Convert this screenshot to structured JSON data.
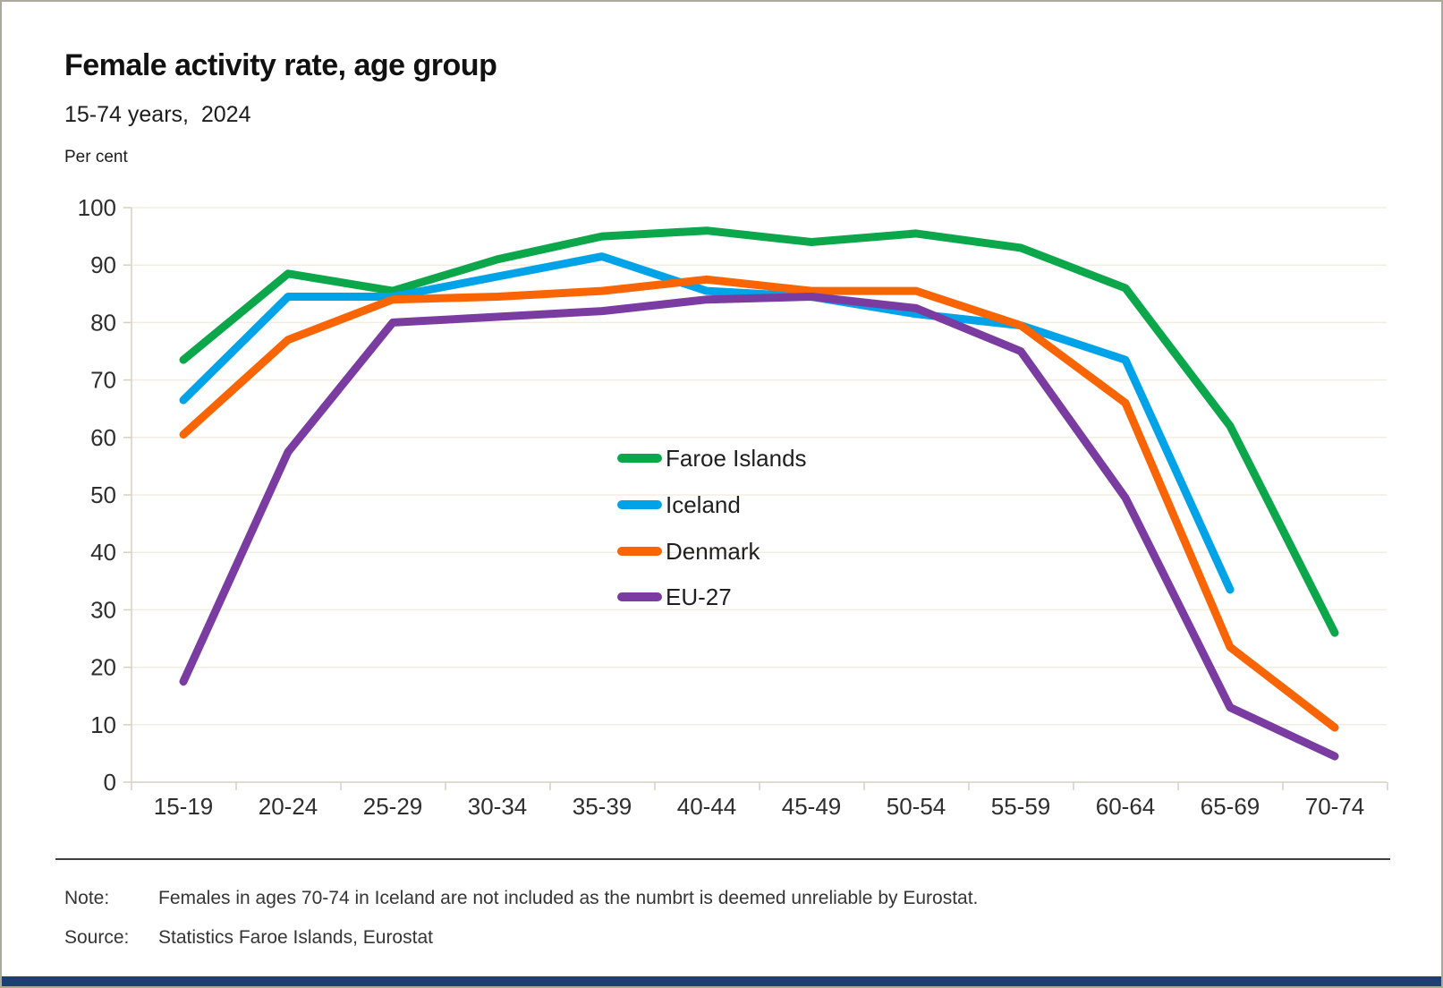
{
  "header": {
    "title": "Female activity rate, age group",
    "subtitle": "15-74 years,  2024",
    "unit_label": "Per cent"
  },
  "chart_data": {
    "type": "line",
    "title": "Female activity rate, age group",
    "subtitle": "15-74 years, 2024",
    "ylabel": "Per cent",
    "xlabel": "",
    "ylim": [
      0,
      100
    ],
    "y_tick_step": 10,
    "y_ticks": [
      0,
      10,
      20,
      30,
      40,
      50,
      60,
      70,
      80,
      90,
      100
    ],
    "grid": true,
    "legend_position": "inside-center",
    "categories": [
      "15-19",
      "20-24",
      "25-29",
      "30-34",
      "35-39",
      "40-44",
      "45-49",
      "50-54",
      "55-59",
      "60-64",
      "65-69",
      "70-74"
    ],
    "series": [
      {
        "name": "Faroe Islands",
        "color": "#0CA64B",
        "values": [
          73.5,
          88.5,
          85.5,
          91,
          95,
          96,
          94,
          95.5,
          93,
          86,
          62,
          26
        ]
      },
      {
        "name": "Iceland",
        "color": "#00A3E8",
        "values": [
          66.5,
          84.5,
          84.5,
          88,
          91.5,
          85.5,
          84.5,
          81.5,
          79.5,
          73.5,
          33.5,
          null
        ]
      },
      {
        "name": "Denmark",
        "color": "#F96505",
        "values": [
          60.5,
          77,
          84,
          84.5,
          85.5,
          87.5,
          85.5,
          85.5,
          79.5,
          66,
          23.5,
          9.5
        ]
      },
      {
        "name": "EU-27",
        "color": "#7A3CA0",
        "values": [
          17.5,
          57.5,
          80,
          81,
          82,
          84,
          84.5,
          82.5,
          75,
          49.5,
          13,
          4.5
        ]
      }
    ]
  },
  "footer": {
    "note_label": "Note:",
    "note_text": "Females in ages 70-74 in Iceland are not included as the numbrt is deemed unreliable by Eurostat.",
    "source_label": "Source:",
    "source_text": "Statistics Faroe Islands, Eurostat"
  },
  "colors": {
    "gridline": "#F1EDE2",
    "axis": "#D5D1C3",
    "tick_text": "#2e2e2e",
    "accent_bar": "#1F3E73"
  }
}
